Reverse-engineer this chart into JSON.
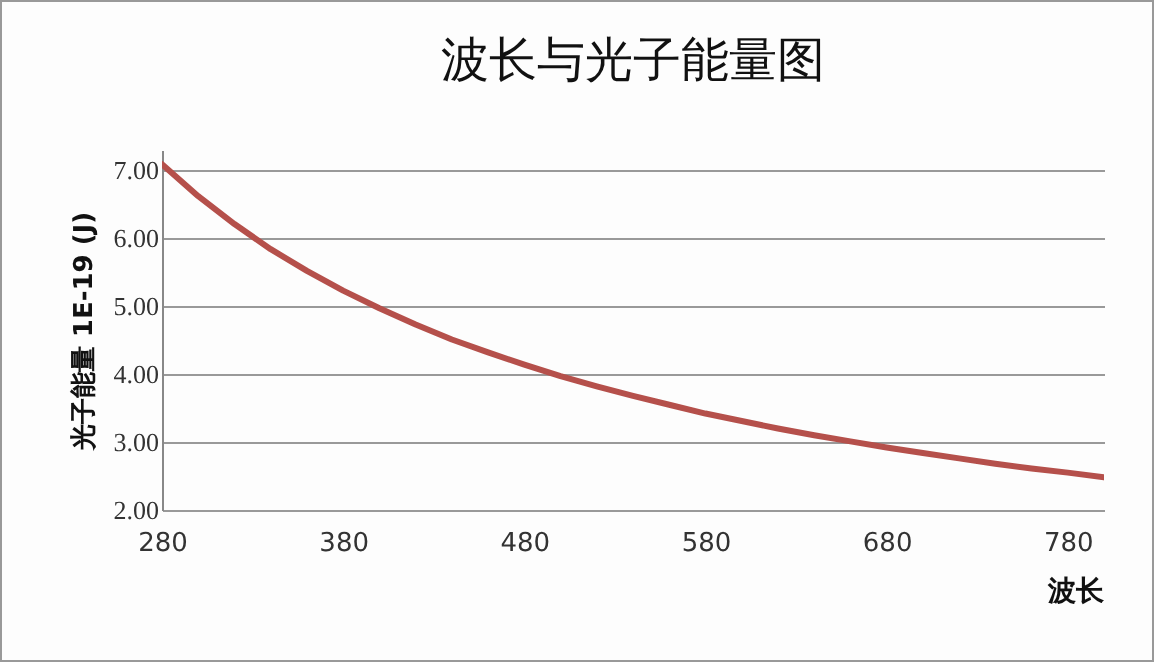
{
  "chart_data": {
    "type": "line",
    "title": "波长与光子能量图",
    "xlabel": "波长",
    "ylabel": "光子能量 1E-19 (J)",
    "x": [
      280,
      300,
      320,
      340,
      360,
      380,
      400,
      420,
      440,
      460,
      480,
      500,
      520,
      540,
      560,
      580,
      600,
      620,
      640,
      660,
      680,
      700,
      720,
      740,
      760,
      780,
      800
    ],
    "series": [
      {
        "color": "#b5504b",
        "values": [
          7.09,
          6.62,
          6.21,
          5.84,
          5.52,
          5.23,
          4.97,
          4.73,
          4.51,
          4.32,
          4.14,
          3.97,
          3.82,
          3.68,
          3.55,
          3.42,
          3.31,
          3.2,
          3.1,
          3.01,
          2.92,
          2.84,
          2.76,
          2.68,
          2.61,
          2.55,
          2.48
        ]
      }
    ],
    "xlim": [
      280,
      800
    ],
    "xticks": [
      280,
      380,
      480,
      580,
      680,
      780
    ],
    "ylim": [
      2,
      7.3
    ],
    "yticks": [
      {
        "value": 2,
        "label": "2.00"
      },
      {
        "value": 3,
        "label": "3.00"
      },
      {
        "value": 4,
        "label": "4.00"
      },
      {
        "value": 5,
        "label": "5.00"
      },
      {
        "value": 6,
        "label": "6.00"
      },
      {
        "value": 7,
        "label": "7.00"
      }
    ],
    "grid": "y",
    "marker": "none",
    "line_style": "solid"
  }
}
